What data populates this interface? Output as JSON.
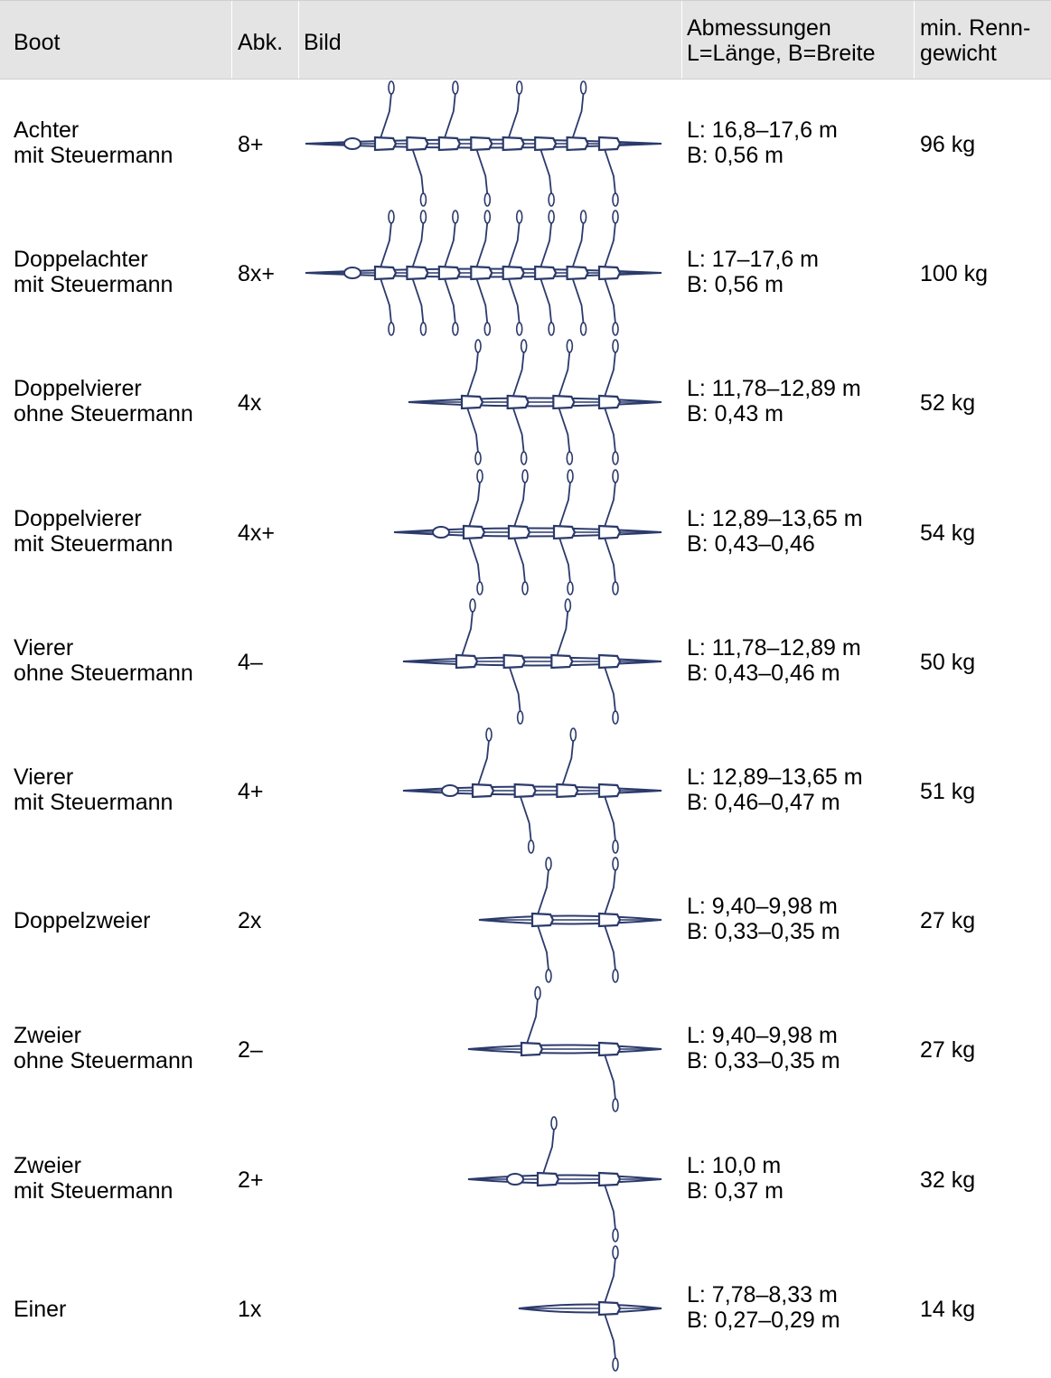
{
  "header": {
    "boot": "Boot",
    "abk": "Abk.",
    "bild": "Bild",
    "dim_line1": "Abmessungen",
    "dim_line2": "L=Länge, B=Breite",
    "wt_line1": "min. Renn-",
    "wt_line2": "gewicht"
  },
  "rows": [
    {
      "name1": "Achter",
      "name2": "mit Steuermann",
      "abk": "8+",
      "len": "L: 16,8–17,6 m",
      "wid": "B: 0,56 m",
      "weight": "96 kg"
    },
    {
      "name1": "Doppelachter",
      "name2": "mit Steuermann",
      "abk": "8x+",
      "len": "L: 17–17,6 m",
      "wid": "B: 0,56 m",
      "weight": "100 kg"
    },
    {
      "name1": "Doppelvierer",
      "name2": "ohne Steuermann",
      "abk": "4x",
      "len": "L: 11,78–12,89 m",
      "wid": "B: 0,43 m",
      "weight": "52 kg"
    },
    {
      "name1": "Doppelvierer",
      "name2": "mit Steuermann",
      "abk": "4x+",
      "len": "L: 12,89–13,65 m",
      "wid": "B: 0,43–0,46",
      "weight": "54 kg"
    },
    {
      "name1": "Vierer",
      "name2": "ohne Steuermann",
      "abk": "4–",
      "len": "L: 11,78–12,89 m",
      "wid": "B: 0,43–0,46 m",
      "weight": "50 kg"
    },
    {
      "name1": "Vierer",
      "name2": "mit Steuermann",
      "abk": "4+",
      "len": "L: 12,89–13,65 m",
      "wid": "B: 0,46–0,47 m",
      "weight": "51 kg"
    },
    {
      "name1": "Doppelzweier",
      "name2": "",
      "abk": "2x",
      "len": "L: 9,40–9,98 m",
      "wid": "B: 0,33–0,35 m",
      "weight": "27 kg"
    },
    {
      "name1": "Zweier",
      "name2": "ohne Steuermann",
      "abk": "2–",
      "len": "L: 9,40–9,98 m",
      "wid": "B: 0,33–0,35 m",
      "weight": "27 kg"
    },
    {
      "name1": "Zweier",
      "name2": "mit Steuermann",
      "abk": "2+",
      "len": "L: 10,0 m",
      "wid": "B: 0,37 m",
      "weight": "32 kg"
    },
    {
      "name1": "Einer",
      "name2": "",
      "abk": "1x",
      "len": "L: 7,78–8,33 m",
      "wid": "B: 0,27–0,29 m",
      "weight": "14 kg"
    }
  ],
  "colors": {
    "header_bg": "#e4e4e4",
    "boat_ink": "#2b3a6b"
  }
}
